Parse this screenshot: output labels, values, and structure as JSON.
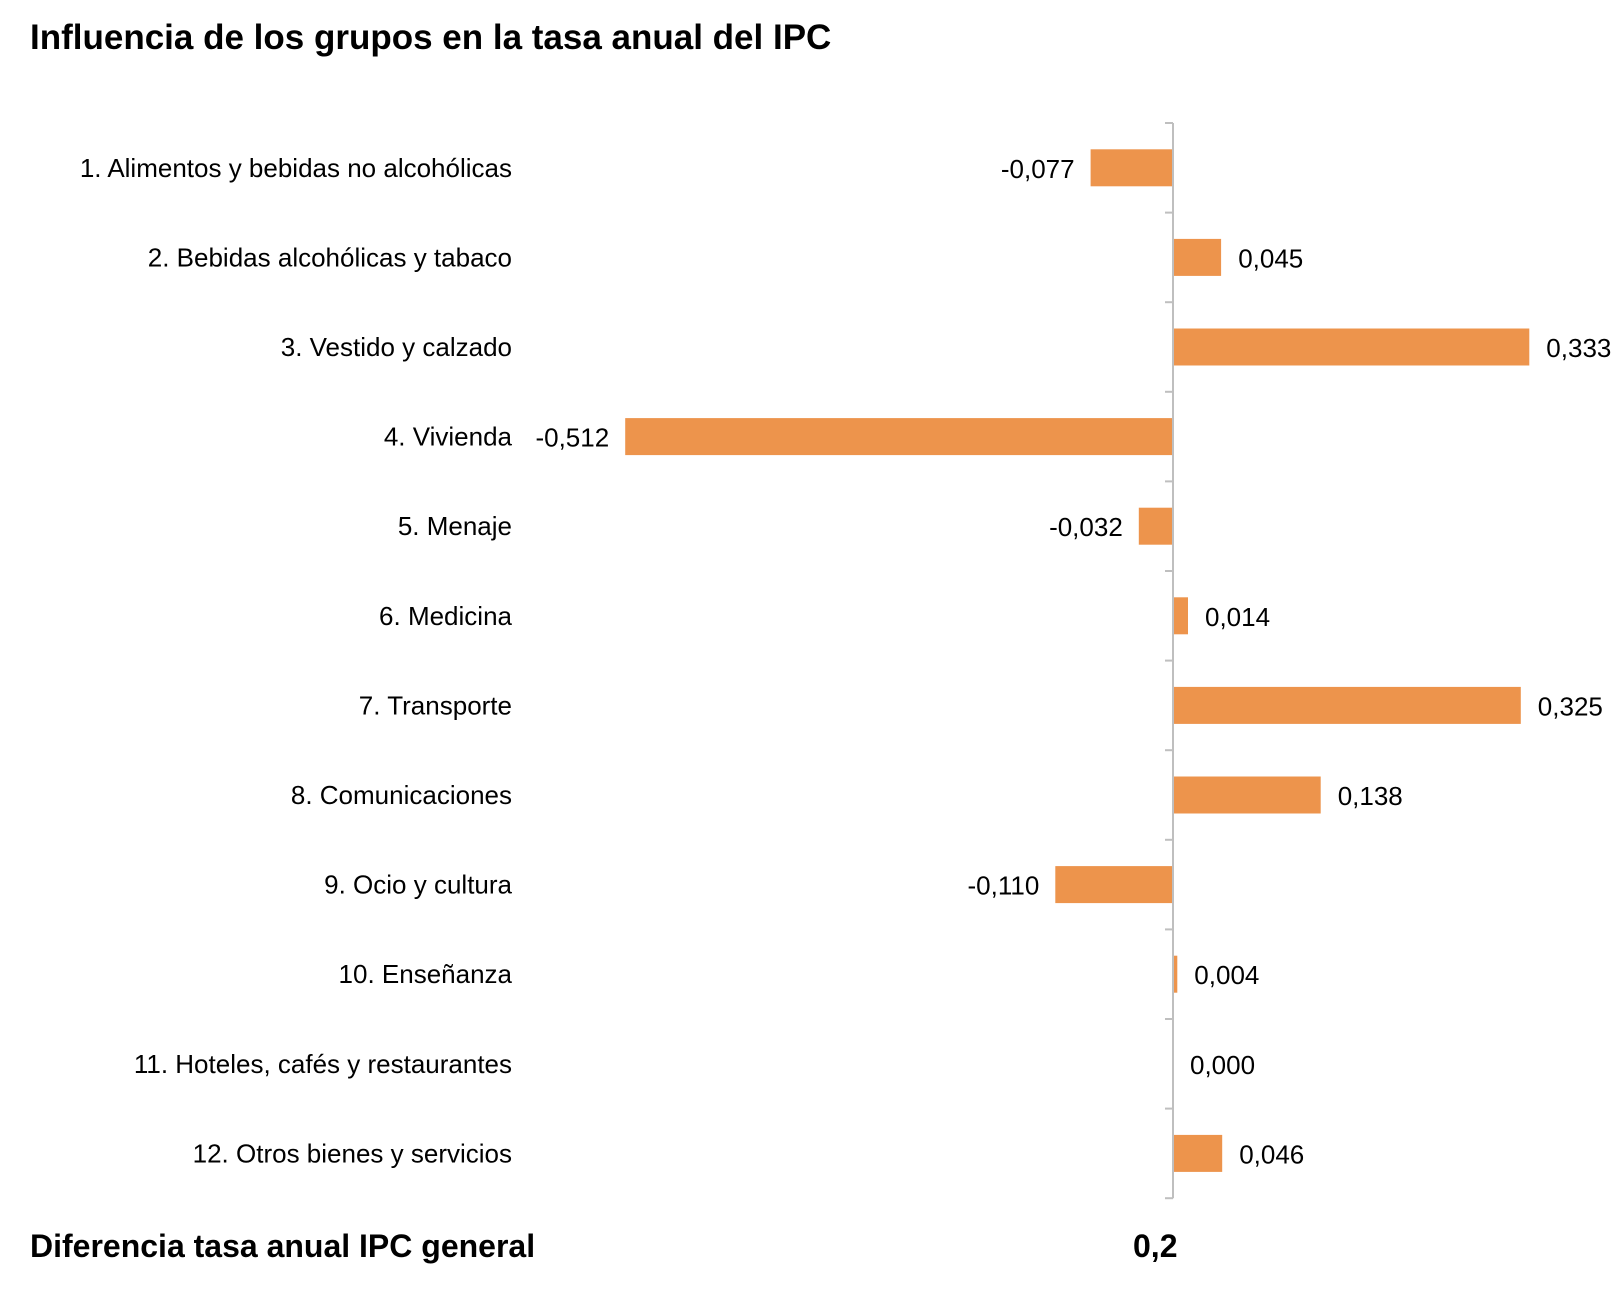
{
  "title": "Influencia de los grupos en la tasa anual del IPC",
  "footer": {
    "label": "Diferencia tasa anual IPC general",
    "value": "0,2"
  },
  "colors": {
    "bar": "#ED944C",
    "axis": "#BFBFBF"
  },
  "chart_data": {
    "type": "bar",
    "orientation": "horizontal",
    "categories": [
      "1. Alimentos y bebidas no alcohólicas",
      "2. Bebidas alcohólicas y tabaco",
      "3. Vestido y calzado",
      "4. Vivienda",
      "5. Menaje",
      "6. Medicina",
      "7. Transporte",
      "8. Comunicaciones",
      "9. Ocio y cultura",
      "10. Enseñanza",
      "11. Hoteles, cafés y restaurantes",
      "12. Otros bienes y servicios"
    ],
    "values": [
      -0.077,
      0.045,
      0.333,
      -0.512,
      -0.032,
      0.014,
      0.325,
      0.138,
      -0.11,
      0.004,
      0.0,
      0.046
    ],
    "data_labels": [
      "-0,077",
      "0,045",
      "0,333",
      "-0,512",
      "-0,032",
      "0,014",
      "0,325",
      "0,138",
      "-0,110",
      "0,004",
      "0,000",
      "0,046"
    ],
    "grid": false,
    "legend": "none"
  }
}
